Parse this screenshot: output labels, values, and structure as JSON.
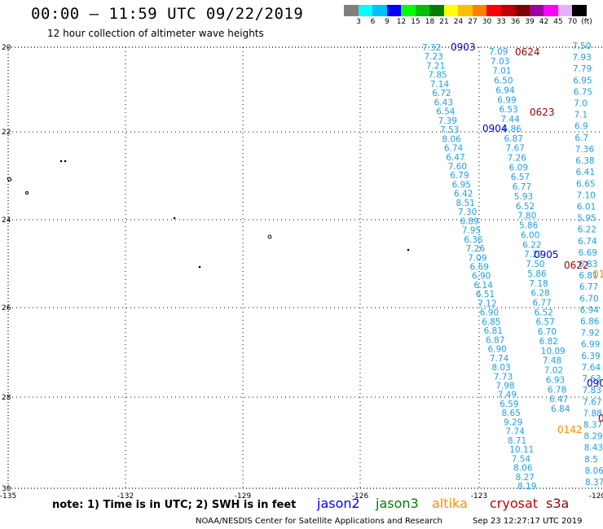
{
  "header": {
    "title": "00:00 – 11:59 UTC 09/22/2019",
    "subtitle": "12 hour collection of altimeter wave heights"
  },
  "colorbar": {
    "colors": [
      "#7f7f7f",
      "#00ffff",
      "#00bfff",
      "#0000ff",
      "#00ff00",
      "#00bf00",
      "#008000",
      "#ffff00",
      "#ffbf00",
      "#ff8000",
      "#ff0000",
      "#bf0000",
      "#800000",
      "#a000a0",
      "#ff00ff",
      "#e6b0ff",
      "#000000"
    ],
    "labels": [
      "3",
      "6",
      "9",
      "12",
      "15",
      "18",
      "21",
      "24",
      "27",
      "30",
      "33",
      "36",
      "39",
      "42",
      "45",
      "70",
      "(ft)"
    ]
  },
  "map": {
    "lon_labels": [
      "-135",
      "-132",
      "-129",
      "-126",
      "-123",
      "-120"
    ],
    "lat_labels": [
      "20",
      "22",
      "24",
      "26",
      "28",
      "30"
    ]
  },
  "tracks": {
    "t1": [
      "7.32",
      "7.23",
      "7.21",
      "7.85",
      "7.14",
      "6.72",
      "6.43",
      "6.54",
      "7.39",
      "7.53",
      "8.06",
      "6.74",
      "6.47",
      "7.60",
      "6.79",
      "6.95",
      "6.42",
      "8.51",
      "7.30",
      "6.89",
      "7.95",
      "6.36",
      "7.26",
      "7.09",
      "6.69",
      "6.90",
      "6.14",
      "6.51",
      "7.12",
      "6.90",
      "6.85",
      "6.81",
      "6.87",
      "6.90",
      "7.74",
      "8.03",
      "7.73",
      "7.98",
      "7.49",
      "6.59",
      "8.65",
      "9.29",
      "7.74",
      "8.71",
      "10.11",
      "7.54",
      "8.06",
      "8.27",
      "8.19"
    ],
    "t2": [
      "7.09",
      "7.03",
      "7.01",
      "6.50",
      "6.94",
      "6.99",
      "6.53",
      "7.44",
      "6.86",
      "6.87",
      "7.67",
      "7.26",
      "6.09",
      "6.57",
      "6.77",
      "5.93",
      "6.52",
      "7.80",
      "5.86",
      "6.00",
      "6.22",
      "7.27",
      "7.50",
      "5.86",
      "7.18",
      "6.28",
      "6.77",
      "6.52",
      "6.57",
      "6.70",
      "6.82",
      "10.09",
      "7.48",
      "7.02",
      "6.93",
      "6.78",
      "6.47",
      "6.84"
    ],
    "t3": [
      "7.50",
      "7.93",
      "7.79",
      "6.95",
      "6.75",
      "7.0",
      "7.1",
      "6.9",
      "6.7",
      "7.36",
      "6.38",
      "6.41",
      "6.65",
      "7.10",
      "6.01",
      "5.95",
      "6.22",
      "6.74",
      "6.69",
      "6.83",
      "6.81",
      "6.77",
      "6.70",
      "6.94",
      "6.86",
      "7.92",
      "6.99",
      "6.39",
      "7.64",
      "7.63",
      "7.83",
      "7.67",
      "7.88",
      "8.37",
      "8.29",
      "8.43",
      "8.5",
      "8.06",
      "8.37"
    ],
    "time_labels": [
      {
        "text": "0903",
        "color": "#0000cc"
      },
      {
        "text": "0624",
        "color": "#990000"
      },
      {
        "text": "0623",
        "color": "#990000"
      },
      {
        "text": "0904",
        "color": "#0000cc"
      },
      {
        "text": "0905",
        "color": "#0000cc"
      },
      {
        "text": "0622",
        "color": "#990000"
      },
      {
        "text": "0142",
        "color": "#ff8c00"
      },
      {
        "text": "090",
        "color": "#0000cc"
      },
      {
        "text": "01",
        "color": "#ff8c00"
      },
      {
        "text": "0",
        "color": "#990000"
      }
    ],
    "value_color": "#1ea0e6"
  },
  "footer": {
    "note": "note:  1) Time is in UTC;  2) SWH is in feet",
    "missions": [
      {
        "name": "jason2",
        "color": "#0000ff"
      },
      {
        "name": "jason3",
        "color": "#008000"
      },
      {
        "name": "altika",
        "color": "#ff8c00"
      },
      {
        "name": "cryosat",
        "color": "#cc0000"
      },
      {
        "name": "s3a",
        "color": "#990000"
      }
    ],
    "credit": "NOAA/NESDIS Center for Satellite Applications and Research",
    "timestamp": "Sep 23 12:27:17 UTC 2019"
  }
}
